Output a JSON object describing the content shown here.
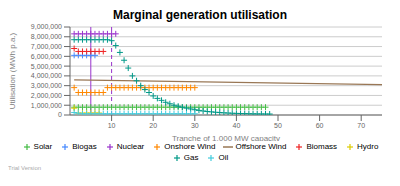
{
  "chart_data": {
    "type": "scatter",
    "title": "Marginal generation utilisation",
    "x_label": "Tranche of 1,000 MW capacity",
    "y_label": "Utilisation (MWh p.a.)",
    "xlim": [
      0,
      75
    ],
    "ylim": [
      0,
      9000000
    ],
    "xticks": [
      10,
      20,
      30,
      40,
      50,
      60,
      70
    ],
    "yticks": [
      0,
      {
        "value": 1000000,
        "label": "1,000,000"
      },
      {
        "value": 2000000,
        "label": "2,000,000"
      },
      {
        "value": 3000000,
        "label": "3,000,000"
      },
      {
        "value": 4000000,
        "label": "4,000,000"
      },
      {
        "value": 5000000,
        "label": "5,000,000"
      },
      {
        "value": 6000000,
        "label": "6,000,000"
      },
      {
        "value": 7000000,
        "label": "7,000,000"
      },
      {
        "value": 8000000,
        "label": "8,000,000"
      },
      {
        "value": 9000000,
        "label": "9,000,000"
      }
    ],
    "grid": true,
    "legend": "bottom",
    "annotations": [
      "Trial Version"
    ],
    "vertical_lines": [
      {
        "x": 5,
        "color": "#9933cc",
        "line_style": "solid"
      },
      {
        "x": 10,
        "color": "#9933cc",
        "line_style": "dashed"
      }
    ],
    "series": [
      {
        "name": "Solar",
        "color": "#44bb44",
        "type": "scatter",
        "marker": "plus",
        "x": [
          1,
          2,
          3,
          4,
          5,
          6,
          7,
          8,
          9,
          10,
          11,
          12,
          13,
          14,
          15,
          16,
          17,
          18,
          19,
          20,
          21,
          22,
          23,
          24,
          25,
          26,
          27,
          28,
          29,
          30,
          31,
          32,
          33,
          34,
          35,
          36,
          37,
          38,
          39,
          40,
          41,
          42,
          43,
          44,
          45,
          46,
          47
        ],
        "values": [
          800000,
          800000,
          800000,
          800000,
          800000,
          800000,
          800000,
          800000,
          800000,
          800000,
          800000,
          800000,
          800000,
          800000,
          800000,
          800000,
          800000,
          800000,
          800000,
          800000,
          800000,
          800000,
          800000,
          800000,
          800000,
          800000,
          800000,
          800000,
          800000,
          800000,
          800000,
          800000,
          800000,
          800000,
          800000,
          800000,
          800000,
          800000,
          800000,
          800000,
          800000,
          800000,
          800000,
          800000,
          800000,
          800000,
          800000
        ]
      },
      {
        "name": "Biogas",
        "color": "#4488ff",
        "type": "scatter",
        "marker": "plus",
        "x": [
          1,
          2,
          3,
          4,
          5,
          6
        ],
        "values": [
          6100000,
          6100000,
          6100000,
          6100000,
          6100000,
          6100000
        ]
      },
      {
        "name": "Nuclear",
        "color": "#9933cc",
        "type": "scatter",
        "marker": "plus",
        "x": [
          1,
          2,
          3,
          4,
          5,
          6,
          7,
          8,
          9,
          10,
          11
        ],
        "values": [
          8300000,
          8300000,
          8300000,
          8300000,
          8300000,
          8300000,
          8300000,
          8300000,
          8300000,
          8300000,
          8300000
        ]
      },
      {
        "name": "Onshore Wind",
        "color": "#ff8800",
        "type": "scatter",
        "marker": "plus",
        "x": [
          1,
          2,
          3,
          4,
          5,
          6,
          7,
          8,
          9,
          10,
          11,
          12,
          13,
          14,
          15,
          16,
          17,
          18,
          19,
          20,
          21,
          22,
          23,
          24,
          25,
          26,
          27,
          28,
          29,
          30
        ],
        "values": [
          2800000,
          2300000,
          2300000,
          2300000,
          2300000,
          2300000,
          2300000,
          2300000,
          2800000,
          2800000,
          2800000,
          2800000,
          2800000,
          2800000,
          2800000,
          2800000,
          2800000,
          2800000,
          2800000,
          2800000,
          2800000,
          2800000,
          2800000,
          2800000,
          2800000,
          2800000,
          2800000,
          2800000,
          2800000,
          2800000
        ]
      },
      {
        "name": "Offshore Wind",
        "color": "#997755",
        "type": "line",
        "line_style": "solid",
        "x": [
          1,
          75
        ],
        "values": [
          3600000,
          3100000
        ]
      },
      {
        "name": "Biomass",
        "color": "#ee2222",
        "type": "scatter",
        "marker": "plus",
        "x": [
          1,
          2,
          3,
          4,
          5,
          6,
          7,
          8
        ],
        "values": [
          6800000,
          6500000,
          6500000,
          6500000,
          6500000,
          6500000,
          6500000,
          6500000
        ]
      },
      {
        "name": "Hydro",
        "color": "#ddcc00",
        "type": "scatter",
        "marker": "plus",
        "x": [
          1,
          2,
          3,
          4,
          5,
          6,
          7
        ],
        "values": [
          700000,
          200000,
          200000,
          200000,
          200000,
          200000,
          200000
        ]
      },
      {
        "name": "Gas",
        "color": "#009988",
        "type": "scatter",
        "marker": "plus",
        "x": [
          1,
          2,
          3,
          4,
          5,
          6,
          7,
          8,
          9,
          10,
          11,
          12,
          13,
          14,
          15,
          16,
          17,
          18,
          19,
          20,
          21,
          22,
          23,
          24,
          25,
          26,
          27,
          28,
          29,
          30,
          31,
          32,
          33,
          34,
          35,
          36,
          37,
          38,
          39,
          40,
          41,
          42,
          43,
          44,
          45,
          46,
          47,
          48
        ],
        "values": [
          7700000,
          7700000,
          7700000,
          7700000,
          7700000,
          7700000,
          7700000,
          7700000,
          7700000,
          7600000,
          7100000,
          6400000,
          5600000,
          4800000,
          4000000,
          3500000,
          3000000,
          2600000,
          2300000,
          1950000,
          1700000,
          1500000,
          1300000,
          1150000,
          1000000,
          900000,
          800000,
          700000,
          620000,
          540000,
          470000,
          410000,
          360000,
          320000,
          280000,
          250000,
          220000,
          200000,
          180000,
          165000,
          150000,
          140000,
          130000,
          120000,
          115000,
          110000,
          105000,
          100000
        ]
      },
      {
        "name": "Oil",
        "color": "#44ccdd",
        "type": "scatter",
        "marker": "plus",
        "x": [
          1,
          2,
          3,
          4,
          5,
          6,
          7,
          8,
          9,
          10,
          11,
          12,
          13,
          14,
          15,
          16,
          17,
          18,
          19,
          20,
          21,
          22,
          23,
          24,
          25,
          26,
          27,
          28,
          29,
          30
        ],
        "values": [
          250000,
          180000,
          130000,
          130000,
          130000,
          130000,
          130000,
          130000,
          130000,
          130000,
          130000,
          130000,
          130000,
          130000,
          130000,
          130000,
          130000,
          130000,
          130000,
          130000,
          130000,
          130000,
          130000,
          130000,
          130000,
          130000,
          130000,
          130000,
          130000,
          130000
        ]
      }
    ]
  }
}
